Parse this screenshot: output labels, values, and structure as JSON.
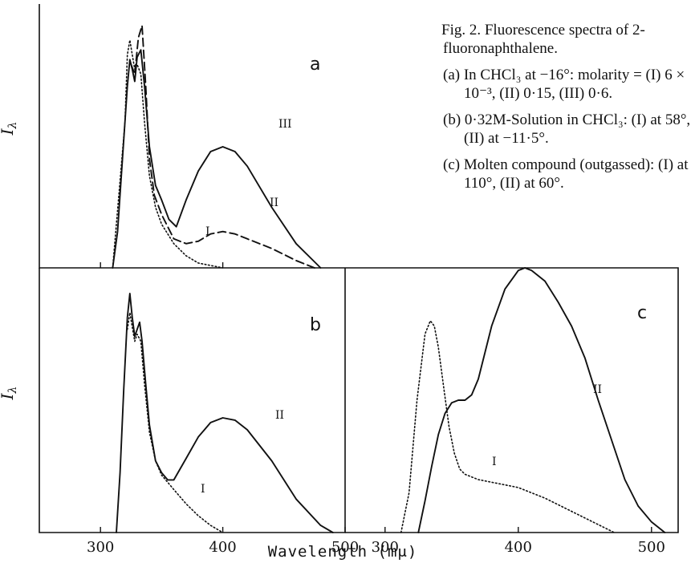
{
  "caption": {
    "title": "Fig. 2. Fluorescence spectra of 2-fluoronaphthalene.",
    "items": [
      "(a) In CHCl₃ at −16°: molarity = (I) 6 × 10⁻³, (II) 0·15, (III) 0·6.",
      "(b) 0·32M-Solution in CHCl₃: (I) at 58°, (II) at −11·5°.",
      "(c) Molten compound (outgassed): (I) at 110°, (II) at 60°."
    ]
  },
  "x_axis_label": "Wavelength (mμ)",
  "y_axis_label": "Iλ",
  "chart_data": [
    {
      "type": "line",
      "panel": "a",
      "xlim": [
        250,
        500
      ],
      "xticks": [
        300,
        400
      ],
      "grid": false,
      "series": [
        {
          "name": "I",
          "style": "dotted",
          "x": [
            310,
            315,
            320,
            322,
            324,
            326,
            328,
            330,
            333,
            336,
            340,
            345,
            350,
            360,
            370,
            380,
            390,
            400
          ],
          "y": [
            0,
            0.3,
            0.6,
            0.88,
            0.94,
            0.88,
            0.82,
            0.84,
            0.8,
            0.6,
            0.38,
            0.25,
            0.18,
            0.1,
            0.05,
            0.02,
            0.01,
            0
          ]
        },
        {
          "name": "II",
          "style": "dashed",
          "x": [
            325,
            328,
            331,
            334,
            337,
            340,
            344,
            350,
            360,
            370,
            380,
            390,
            400,
            410,
            420,
            440,
            460,
            475
          ],
          "y": [
            0.84,
            0.8,
            0.95,
            1.0,
            0.75,
            0.45,
            0.3,
            0.22,
            0.12,
            0.1,
            0.11,
            0.14,
            0.15,
            0.14,
            0.12,
            0.08,
            0.03,
            0
          ]
        },
        {
          "name": "III",
          "style": "solid",
          "x": [
            310,
            314,
            318,
            322,
            324,
            326,
            328,
            330,
            333,
            336,
            340,
            345,
            350,
            356,
            362,
            370,
            380,
            390,
            400,
            410,
            420,
            440,
            460,
            480
          ],
          "y": [
            0,
            0.15,
            0.45,
            0.75,
            0.86,
            0.82,
            0.77,
            0.87,
            0.9,
            0.75,
            0.5,
            0.34,
            0.28,
            0.2,
            0.17,
            0.28,
            0.4,
            0.48,
            0.5,
            0.48,
            0.42,
            0.25,
            0.1,
            0
          ]
        }
      ],
      "annotations": [
        "a",
        "I",
        "II",
        "III"
      ]
    },
    {
      "type": "line",
      "panel": "b",
      "xlim": [
        250,
        500
      ],
      "xticks": [
        300,
        400,
        500
      ],
      "grid": false,
      "series": [
        {
          "name": "I",
          "style": "dotted",
          "x": [
            322,
            324,
            326,
            328,
            330,
            333,
            336,
            340,
            345,
            350,
            360,
            370,
            380,
            390,
            400
          ],
          "y": [
            0.85,
            0.92,
            0.86,
            0.8,
            0.83,
            0.8,
            0.62,
            0.42,
            0.3,
            0.24,
            0.18,
            0.12,
            0.07,
            0.03,
            0
          ]
        },
        {
          "name": "II",
          "style": "solid",
          "x": [
            313,
            316,
            319,
            322,
            324,
            326,
            328,
            330,
            332,
            334,
            337,
            340,
            345,
            350,
            355,
            360,
            370,
            380,
            390,
            400,
            410,
            420,
            440,
            460,
            480,
            490
          ],
          "y": [
            0,
            0.25,
            0.6,
            0.9,
            1.0,
            0.9,
            0.82,
            0.85,
            0.88,
            0.8,
            0.62,
            0.45,
            0.3,
            0.25,
            0.22,
            0.22,
            0.31,
            0.4,
            0.46,
            0.48,
            0.47,
            0.43,
            0.3,
            0.14,
            0.03,
            0
          ]
        }
      ],
      "annotations": [
        "b",
        "I",
        "II"
      ]
    },
    {
      "type": "line",
      "panel": "c",
      "xlim": [
        270,
        520
      ],
      "xticks": [
        300,
        400,
        500
      ],
      "grid": false,
      "series": [
        {
          "name": "I",
          "style": "dotted",
          "x": [
            312,
            318,
            324,
            330,
            334,
            337,
            340,
            344,
            348,
            352,
            356,
            360,
            370,
            380,
            390,
            400,
            420,
            440,
            460,
            472
          ],
          "y": [
            0,
            0.15,
            0.5,
            0.75,
            0.8,
            0.78,
            0.7,
            0.55,
            0.4,
            0.3,
            0.24,
            0.22,
            0.2,
            0.19,
            0.18,
            0.17,
            0.13,
            0.08,
            0.03,
            0
          ]
        },
        {
          "name": "II",
          "style": "solid",
          "x": [
            325,
            330,
            335,
            340,
            345,
            350,
            355,
            360,
            365,
            370,
            375,
            380,
            390,
            400,
            405,
            410,
            420,
            430,
            440,
            450,
            460,
            470,
            480,
            490,
            500,
            510
          ],
          "y": [
            0,
            0.12,
            0.25,
            0.37,
            0.45,
            0.49,
            0.5,
            0.5,
            0.52,
            0.58,
            0.68,
            0.78,
            0.92,
            0.99,
            1.0,
            0.99,
            0.95,
            0.87,
            0.78,
            0.66,
            0.5,
            0.35,
            0.2,
            0.1,
            0.04,
            0
          ]
        }
      ],
      "annotations": [
        "c",
        "I",
        "II"
      ]
    }
  ]
}
